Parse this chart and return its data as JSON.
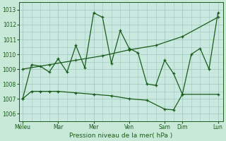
{
  "xlabel": "Pression niveau de la mer( hPa )",
  "bg_color": "#c8e8d8",
  "plot_bg_color": "#c8e8e0",
  "grid_color": "#a0c8b8",
  "line_color": "#1a5c1a",
  "tick_labels": [
    "Méleu",
    "Mar",
    "Mer",
    "Ven",
    "Sam",
    "Dim",
    "Lun"
  ],
  "tick_positions": [
    0,
    2,
    4,
    6,
    8,
    9,
    11
  ],
  "ylim": [
    1005.5,
    1013.5
  ],
  "yticks": [
    1006,
    1007,
    1008,
    1009,
    1010,
    1011,
    1012,
    1013
  ],
  "xlim": [
    -0.2,
    11.3
  ],
  "line1_x": [
    0,
    0.5,
    1,
    1.5,
    2,
    2.5,
    3,
    3.5,
    4,
    4.5,
    5,
    5.5,
    6,
    6.5,
    7,
    7.5,
    8,
    8.5,
    9,
    9.5,
    10,
    10.5,
    11
  ],
  "line1_y": [
    1007.0,
    1009.3,
    1009.2,
    1008.8,
    1009.7,
    1008.8,
    1010.6,
    1009.1,
    1012.8,
    1012.5,
    1009.4,
    1011.6,
    1010.4,
    1010.1,
    1008.0,
    1007.9,
    1009.6,
    1008.7,
    1007.3,
    1010.0,
    1010.4,
    1009.0,
    1012.8
  ],
  "line2_x": [
    0,
    1.5,
    3,
    4.5,
    6,
    7.5,
    9,
    11
  ],
  "line2_y": [
    1009.0,
    1009.3,
    1009.6,
    1009.9,
    1010.3,
    1010.6,
    1011.2,
    1012.5
  ],
  "line3_x": [
    0,
    0.5,
    1,
    1.5,
    2,
    3,
    4,
    5,
    6,
    7,
    8,
    8.5,
    9,
    11
  ],
  "line3_y": [
    1007.0,
    1007.5,
    1007.5,
    1007.5,
    1007.5,
    1007.4,
    1007.3,
    1007.2,
    1007.0,
    1006.9,
    1006.3,
    1006.25,
    1007.3,
    1007.3
  ]
}
